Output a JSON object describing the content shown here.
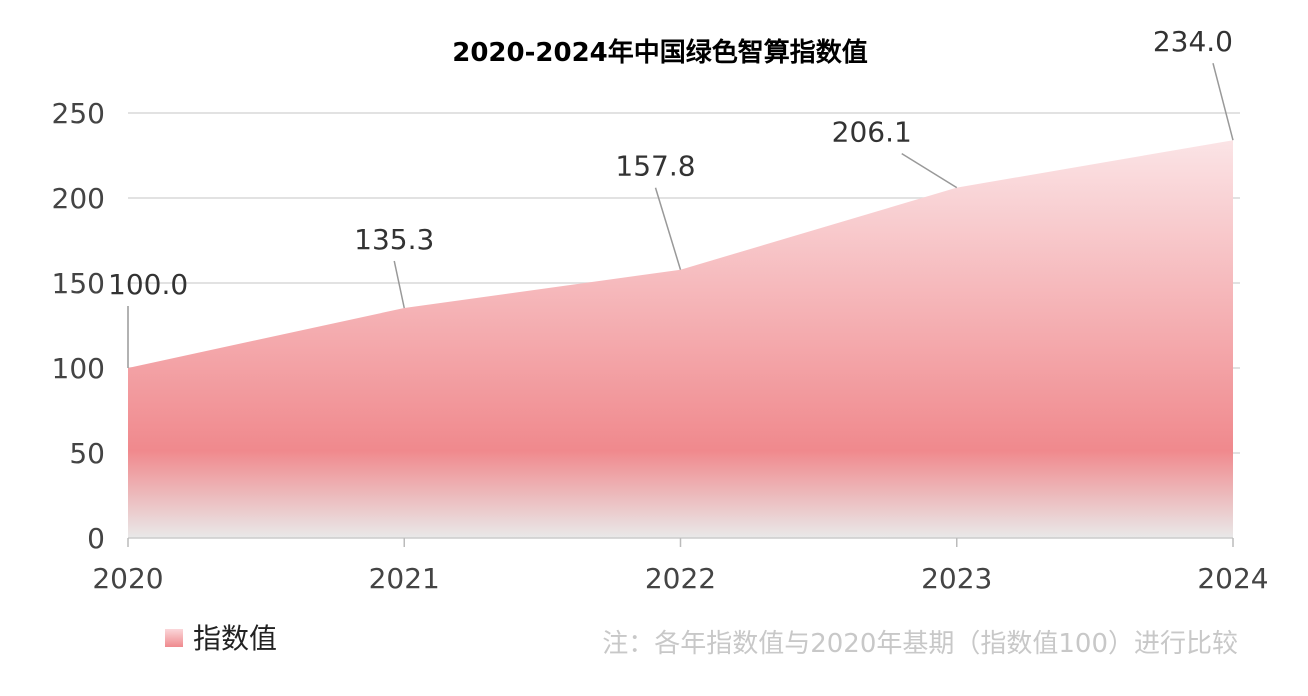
{
  "chart_data": {
    "type": "area",
    "title": "2020-2024年中国绿色智算指数值",
    "categories": [
      "2020",
      "2021",
      "2022",
      "2023",
      "2024"
    ],
    "series": [
      {
        "name": "指数值",
        "values": [
          100.0,
          135.3,
          157.8,
          206.1,
          234.0
        ]
      }
    ],
    "data_labels": [
      "100.0",
      "135.3",
      "157.8",
      "206.1",
      "234.0"
    ],
    "yticks": [
      0,
      50,
      100,
      150,
      200,
      250
    ],
    "ylim": [
      0,
      250
    ],
    "grid": true,
    "legend": "bottom-left",
    "colors": {
      "area_top": "#fbe4e6",
      "area_mid": "#f0898d",
      "area_bottom": "#e9e9e9"
    }
  },
  "note": "注：各年指数值与2020年基期（指数值100）进行比较"
}
